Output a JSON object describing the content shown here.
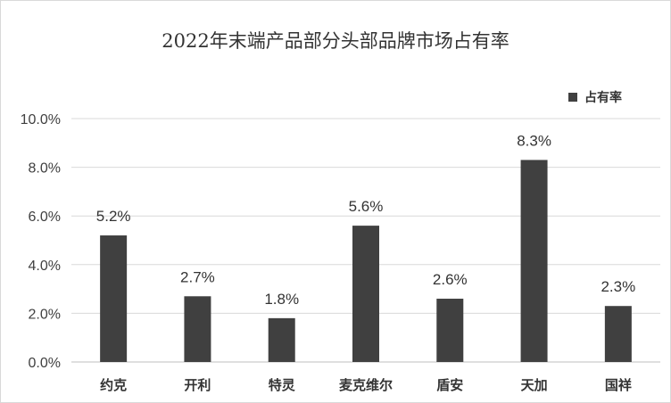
{
  "chart_data": {
    "type": "bar",
    "title": "2022年末端产品部分头部品牌市场占有率",
    "categories": [
      "约克",
      "开利",
      "特灵",
      "麦克维尔",
      "盾安",
      "天加",
      "国祥"
    ],
    "series": [
      {
        "name": "占有率",
        "values": [
          5.2,
          2.7,
          1.8,
          5.6,
          2.6,
          8.3,
          2.3
        ],
        "color": "#404040"
      }
    ],
    "data_labels": [
      "5.2%",
      "2.7%",
      "1.8%",
      "5.6%",
      "2.6%",
      "8.3%",
      "2.3%"
    ],
    "y_ticks": [
      0,
      2,
      4,
      6,
      8,
      10
    ],
    "y_tick_labels": [
      "0.0%",
      "2.0%",
      "4.0%",
      "6.0%",
      "8.0%",
      "10.0%"
    ],
    "ylim": [
      0,
      10
    ],
    "xlabel": "",
    "ylabel": "",
    "grid": true,
    "legend_position": "top-right"
  }
}
